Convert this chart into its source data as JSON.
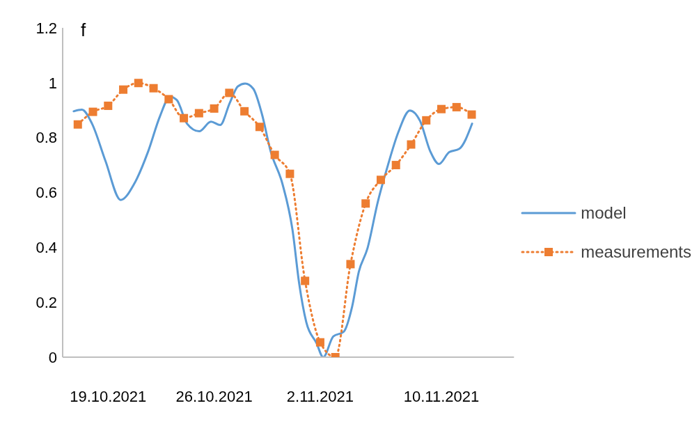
{
  "chart_data": {
    "type": "line",
    "ylabel": "f",
    "xlim": [
      "2021-10-16",
      "2021-11-14T19:00"
    ],
    "xticks": [
      {
        "value": "2021-10-19",
        "label": "19.10.2021"
      },
      {
        "value": "2021-10-26",
        "label": "26.10.2021"
      },
      {
        "value": "2021-11-02",
        "label": "2.11.2021"
      },
      {
        "value": "2021-11-10",
        "label": "10.11.2021"
      }
    ],
    "ylim": [
      0,
      1.2
    ],
    "yticks": [
      0,
      0.2,
      0.4,
      0.6,
      0.8,
      1,
      1.2
    ],
    "grid": false,
    "legend": "right",
    "series": [
      {
        "name": "model",
        "color": "#5b9bd5",
        "marker": "none",
        "line_style": "solid",
        "x": [
          "2021-10-16T17:30",
          "2021-10-17T06:30",
          "2021-10-17T22:30",
          "2021-10-18T19:40",
          "2021-10-19T20:00",
          "2021-10-20T17:40",
          "2021-10-21T15:30",
          "2021-10-22T10:00",
          "2021-10-23T02:10",
          "2021-10-23T12:50",
          "2021-10-24T05:00",
          "2021-10-25T00:20",
          "2021-10-25T19:00",
          "2021-10-26T09:30",
          "2021-10-27T00:50",
          "2021-10-27T13:40",
          "2021-10-28T01:10",
          "2021-10-28T14:00",
          "2021-10-29T03:40",
          "2021-10-29T17:30",
          "2021-10-30T12:00",
          "2021-10-31T04:10",
          "2021-10-31T14:40",
          "2021-11-01T02:00",
          "2021-11-01T18:10",
          "2021-11-02T04:50",
          "2021-11-02T20:50",
          "2021-11-03T13:00",
          "2021-11-04T02:40",
          "2021-11-04T13:10",
          "2021-11-05T02:50",
          "2021-11-05T19:10",
          "2021-11-06T11:20",
          "2021-11-07T03:30",
          "2021-11-07T22:00",
          "2021-11-08T14:10",
          "2021-11-09T06:20",
          "2021-11-09T20:10",
          "2021-11-10T12:20",
          "2021-11-11T04:20",
          "2021-11-12T00:40"
        ],
        "values": [
          0.896,
          0.902,
          0.851,
          0.716,
          0.573,
          0.633,
          0.75,
          0.877,
          0.949,
          0.937,
          0.851,
          0.823,
          0.858,
          0.846,
          0.927,
          0.987,
          0.997,
          0.978,
          0.886,
          0.75,
          0.633,
          0.463,
          0.269,
          0.127,
          0.051,
          0.0,
          0.076,
          0.092,
          0.185,
          0.311,
          0.396,
          0.565,
          0.7,
          0.818,
          0.899,
          0.861,
          0.75,
          0.704,
          0.747,
          0.759,
          0.851
        ]
      },
      {
        "name": "measurements",
        "color": "#ed7d31",
        "marker": "square",
        "line_style": "dotted",
        "x": [
          "2021-10-17",
          "2021-10-18",
          "2021-10-19",
          "2021-10-20",
          "2021-10-21",
          "2021-10-22",
          "2021-10-23",
          "2021-10-24",
          "2021-10-25",
          "2021-10-26",
          "2021-10-27",
          "2021-10-28",
          "2021-10-29",
          "2021-10-30",
          "2021-10-31",
          "2021-11-01",
          "2021-11-02",
          "2021-11-03",
          "2021-11-04",
          "2021-11-05",
          "2021-11-06",
          "2021-11-07",
          "2021-11-08",
          "2021-11-09",
          "2021-11-10",
          "2021-11-11",
          "2021-11-12"
        ],
        "values": [
          0.848,
          0.894,
          0.916,
          0.975,
          0.999,
          0.98,
          0.94,
          0.871,
          0.889,
          0.906,
          0.963,
          0.896,
          0.839,
          0.737,
          0.668,
          0.278,
          0.054,
          0,
          0.339,
          0.56,
          0.646,
          0.7,
          0.775,
          0.863,
          0.904,
          0.911,
          0.884
        ]
      }
    ]
  }
}
